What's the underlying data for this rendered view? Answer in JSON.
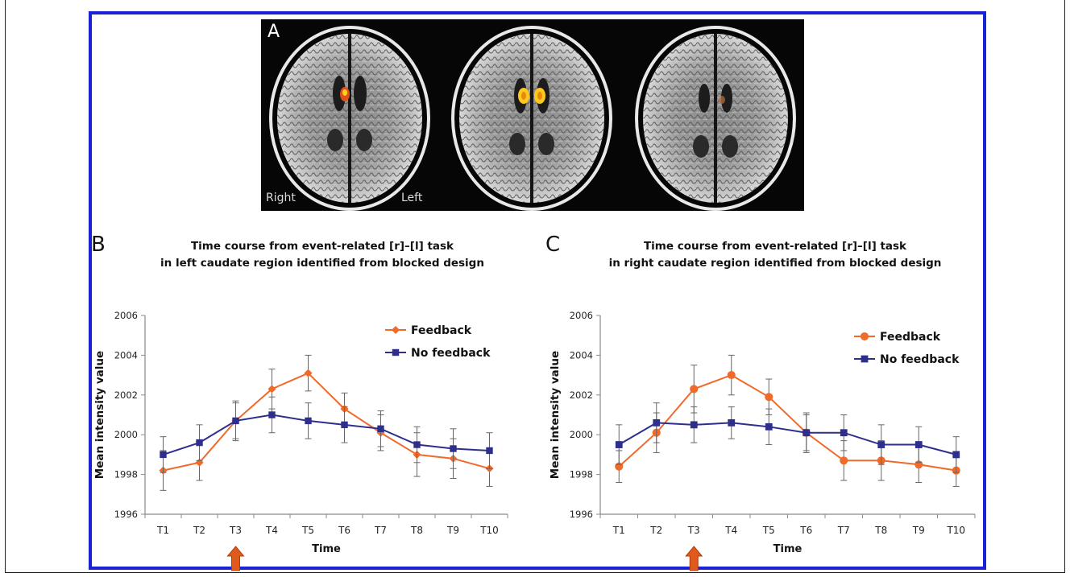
{
  "panel_a": {
    "letter": "A",
    "label_right": "Right",
    "label_left": "Left"
  },
  "chart_data": [
    {
      "panel": "B",
      "type": "line",
      "title": "Time course from event-related [r]–[l] task in left caudate region identified from blocked design",
      "title_lines": [
        "Time course from event-related [r]–[l] task",
        "in left caudate region identified from blocked design"
      ],
      "xlabel": "Time",
      "ylabel": "Mean intensity value",
      "categories": [
        "T1",
        "T2",
        "T3",
        "T4",
        "T5",
        "T6",
        "T7",
        "T8",
        "T9",
        "T10"
      ],
      "ylim": [
        1996,
        2006
      ],
      "yticks": [
        "1996",
        "1998",
        "2000",
        "2002",
        "2004",
        "2006"
      ],
      "stimulus_marker": "T3",
      "legend": "top-right",
      "series": [
        {
          "name": "Feedback",
          "color": "#f06a2a",
          "marker": "diamond",
          "values": [
            1998.2,
            1998.6,
            2000.7,
            2002.3,
            2003.1,
            2001.3,
            2000.1,
            1999.0,
            1998.8,
            1998.3
          ],
          "errors": [
            1.0,
            0.9,
            0.9,
            1.0,
            0.9,
            0.8,
            0.9,
            1.1,
            1.0,
            0.9
          ]
        },
        {
          "name": "No feedback",
          "color": "#2e2e8c",
          "marker": "square",
          "values": [
            1999.0,
            1999.6,
            2000.7,
            2001.0,
            2000.7,
            2000.5,
            2000.3,
            1999.5,
            1999.3,
            1999.2
          ],
          "errors": [
            0.9,
            0.9,
            1.0,
            0.9,
            0.9,
            0.9,
            0.9,
            0.9,
            1.0,
            0.9
          ]
        }
      ]
    },
    {
      "panel": "C",
      "type": "line",
      "title": "Time course from event-related [r]–[l] task in right caudate region identified from blocked design",
      "title_lines": [
        "Time course from event-related [r]–[l]  task",
        "in right caudate region identified from blocked design"
      ],
      "xlabel": "Time",
      "ylabel": "Mean intensity value",
      "categories": [
        "T1",
        "T2",
        "T3",
        "T4",
        "T5",
        "T6",
        "T7",
        "T8",
        "T9",
        "T10"
      ],
      "ylim": [
        1996,
        2006
      ],
      "yticks": [
        "1996",
        "1998",
        "2000",
        "2002",
        "2004",
        "2006"
      ],
      "stimulus_marker": "T3",
      "legend": "top-right",
      "series": [
        {
          "name": "Feedback",
          "color": "#f06a2a",
          "marker": "circle",
          "values": [
            1998.4,
            2000.1,
            2002.3,
            2003.0,
            2001.9,
            2000.1,
            1998.7,
            1998.7,
            1998.5,
            1998.2
          ],
          "errors": [
            0.8,
            1.0,
            1.2,
            1.0,
            0.9,
            0.9,
            1.0,
            1.0,
            0.9,
            0.8
          ]
        },
        {
          "name": "No feedback",
          "color": "#2e2e8c",
          "marker": "square",
          "values": [
            1999.5,
            2000.6,
            2000.5,
            2000.6,
            2000.4,
            2000.1,
            2000.1,
            1999.5,
            1999.5,
            1999.0
          ],
          "errors": [
            1.0,
            1.0,
            0.9,
            0.8,
            0.9,
            1.0,
            0.9,
            1.0,
            0.9,
            0.9
          ]
        }
      ]
    }
  ]
}
